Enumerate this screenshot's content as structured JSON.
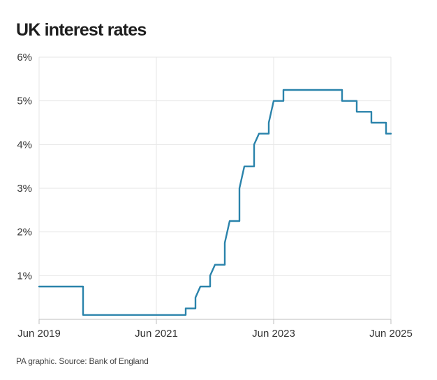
{
  "title": "UK interest rates",
  "source": "PA graphic. Source: Bank of England",
  "colors": {
    "line": "#2a83ab",
    "grid": "#e6e6e6",
    "axis": "#bdbdbd"
  },
  "chart_data": {
    "type": "line",
    "title": "UK interest rates",
    "xlabel": "",
    "ylabel": "",
    "grid": true,
    "legend": "none",
    "xlim": [
      "2019-06",
      "2025-06"
    ],
    "ylim": [
      0,
      6
    ],
    "y_ticks": [
      1,
      2,
      3,
      4,
      5,
      6
    ],
    "y_tick_labels": [
      "1%",
      "2%",
      "3%",
      "4%",
      "5%",
      "6%"
    ],
    "x_ticks": [
      "2019-06",
      "2021-06",
      "2023-06",
      "2025-06"
    ],
    "x_tick_labels": [
      "Jun 2019",
      "Jun 2021",
      "Jun 2023",
      "Jun 2025"
    ],
    "series": [
      {
        "points": [
          [
            "2019-06",
            0.75
          ],
          [
            "2020-03",
            0.75
          ],
          [
            "2020-03",
            0.25
          ],
          [
            "2020-03",
            0.1
          ],
          [
            "2021-12",
            0.1
          ],
          [
            "2021-12",
            0.25
          ],
          [
            "2022-02",
            0.25
          ],
          [
            "2022-02",
            0.5
          ],
          [
            "2022-03",
            0.75
          ],
          [
            "2022-05",
            0.75
          ],
          [
            "2022-05",
            1.0
          ],
          [
            "2022-06",
            1.25
          ],
          [
            "2022-08",
            1.25
          ],
          [
            "2022-08",
            1.75
          ],
          [
            "2022-09",
            2.25
          ],
          [
            "2022-11",
            2.25
          ],
          [
            "2022-11",
            3.0
          ],
          [
            "2022-12",
            3.5
          ],
          [
            "2023-02",
            3.5
          ],
          [
            "2023-02",
            4.0
          ],
          [
            "2023-03",
            4.25
          ],
          [
            "2023-05",
            4.25
          ],
          [
            "2023-05",
            4.5
          ],
          [
            "2023-06",
            5.0
          ],
          [
            "2023-08",
            5.0
          ],
          [
            "2023-08",
            5.25
          ],
          [
            "2024-08",
            5.25
          ],
          [
            "2024-08",
            5.0
          ],
          [
            "2024-11",
            5.0
          ],
          [
            "2024-11",
            4.75
          ],
          [
            "2025-02",
            4.75
          ],
          [
            "2025-02",
            4.5
          ],
          [
            "2025-05",
            4.5
          ],
          [
            "2025-05",
            4.25
          ],
          [
            "2025-06",
            4.25
          ]
        ]
      }
    ]
  }
}
